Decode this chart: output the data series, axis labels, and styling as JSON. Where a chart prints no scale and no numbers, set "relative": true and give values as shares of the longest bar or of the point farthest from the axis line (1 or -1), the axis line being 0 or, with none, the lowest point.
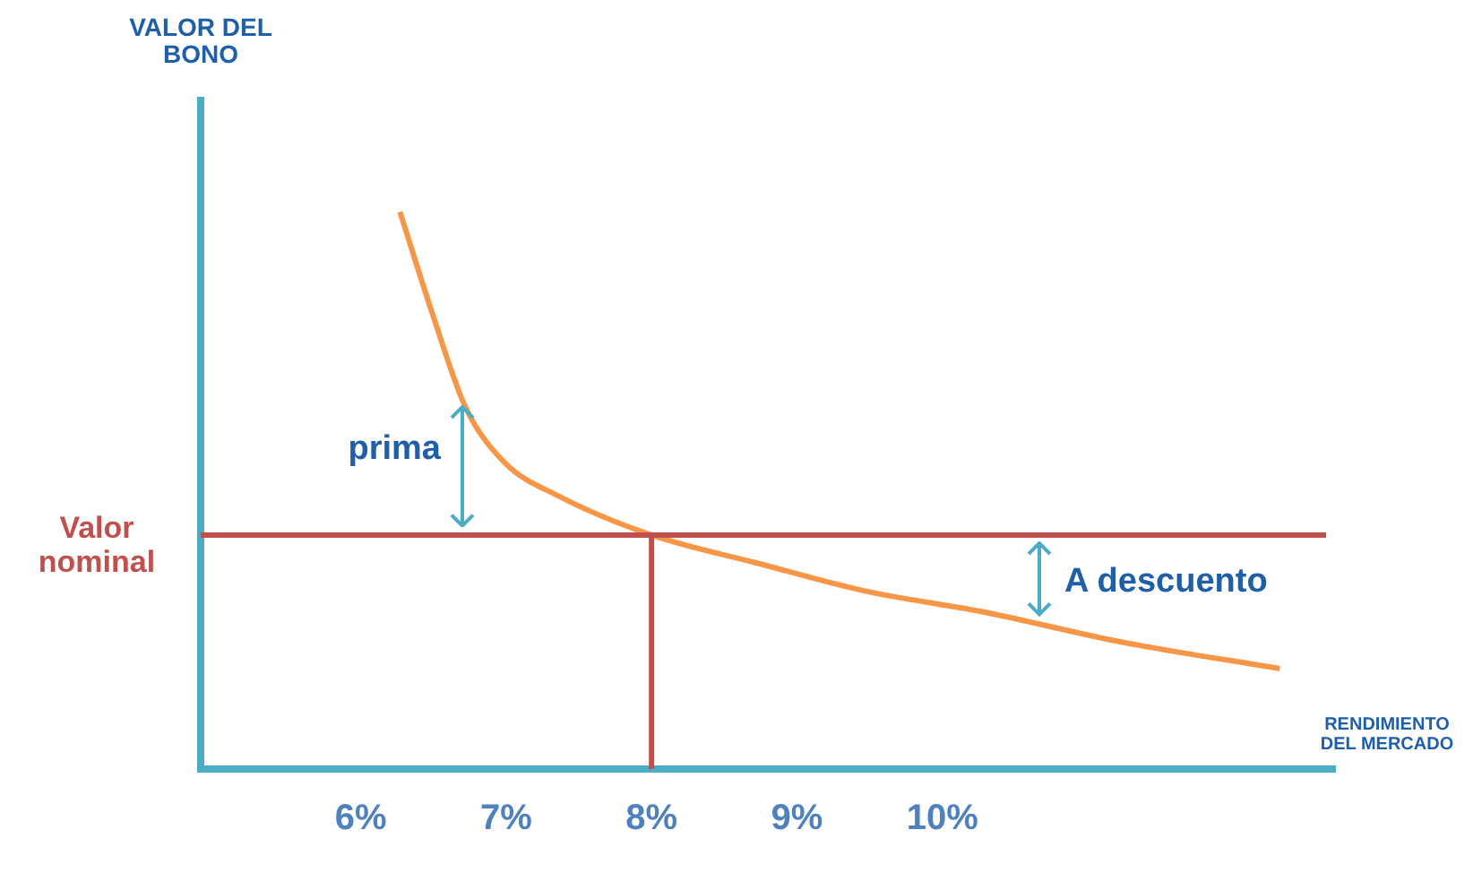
{
  "chart_data": {
    "type": "line",
    "relative": true,
    "xlabel": "RENDIMIENTO DEL MERCADO",
    "x": [
      6.27,
      6.49,
      6.72,
      6.99,
      7.36,
      8.0,
      8.72,
      9.46,
      10.32,
      11.19,
      12.32
    ],
    "series": [
      {
        "color": "#f79646",
        "values": [
          1,
          0.82,
          0.65,
          0.55,
          0.49,
          0.42,
          0.37,
          0.32,
          0.28,
          0.23,
          0.18
        ]
      }
    ],
    "xlim": [
      4.9,
      12.7
    ],
    "xticks": [
      {
        "value": 6,
        "label": "6%"
      },
      {
        "value": 7,
        "label": "7%"
      },
      {
        "value": 8,
        "label": "8%"
      },
      {
        "value": 9,
        "label": "9%"
      },
      {
        "value": 10,
        "label": "10%"
      }
    ],
    "ref_lines": [
      {
        "axis": "y",
        "value": 0.42,
        "label": "Valor nominal",
        "color": "#c0504d"
      },
      {
        "axis": "x",
        "value": 8,
        "color": "#c0504d"
      }
    ],
    "annotations": [
      "prima",
      "A descuento",
      "VALOR DEL BONO"
    ],
    "grid": false,
    "legend": false,
    "marker": "none",
    "line_style": "solid"
  }
}
